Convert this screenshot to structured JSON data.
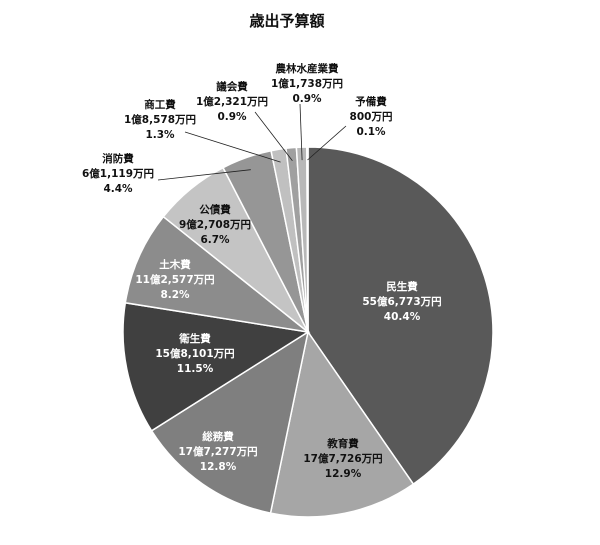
{
  "chart_data": {
    "type": "pie",
    "title": "歳出予算額",
    "start": "12-oclock",
    "direction": "clockwise",
    "slices": [
      {
        "name": "民生費",
        "amount": "55億6,773万円",
        "value": 40.4,
        "color": "#595959"
      },
      {
        "name": "教育費",
        "amount": "17億7,726万円",
        "value": 12.9,
        "color": "#a6a6a6"
      },
      {
        "name": "総務費",
        "amount": "17億7,277万円",
        "value": 12.8,
        "color": "#7f7f7f"
      },
      {
        "name": "衛生費",
        "amount": "15億8,101万円",
        "value": 11.5,
        "color": "#404040"
      },
      {
        "name": "土木費",
        "amount": "11億2,577万円",
        "value": 8.2,
        "color": "#8c8c8c"
      },
      {
        "name": "公債費",
        "amount": "9億2,708万円",
        "value": 6.7,
        "color": "#c4c4c4"
      },
      {
        "name": "消防費",
        "amount": "6億1,119万円",
        "value": 4.4,
        "color": "#969696"
      },
      {
        "name": "商工費",
        "amount": "1億8,578万円",
        "value": 1.3,
        "color": "#c0c0c0"
      },
      {
        "name": "議会費",
        "amount": "1億2,321万円",
        "value": 0.9,
        "color": "#a0a0a0"
      },
      {
        "name": "農林水産業費",
        "amount": "1億1,738万円",
        "value": 0.9,
        "color": "#b8b8b8"
      },
      {
        "name": "予備費",
        "amount": "800万円",
        "value": 0.1,
        "color": "#808080"
      }
    ]
  }
}
